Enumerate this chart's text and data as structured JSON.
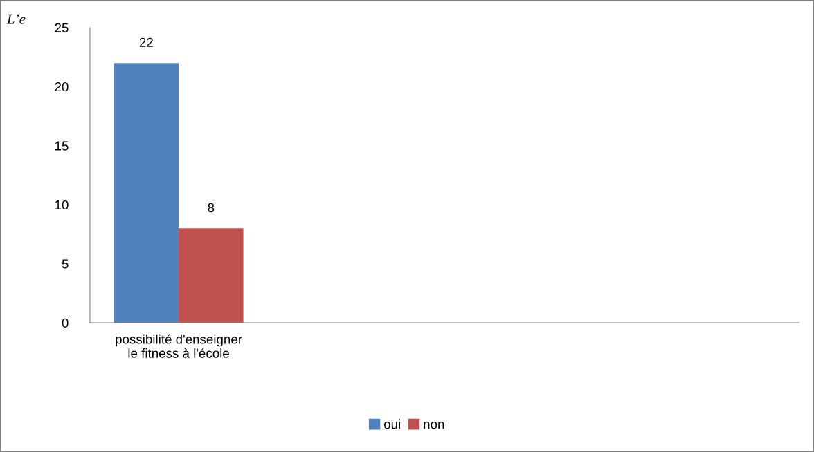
{
  "chart_data": {
    "type": "bar",
    "categories": [
      "possibilité d'enseigner\nle fitness à l'école",
      null,
      null,
      null
    ],
    "series": [
      {
        "name": "oui",
        "color": "#4f81bd",
        "values": [
          22,
          null,
          null,
          null
        ]
      },
      {
        "name": "non",
        "color": "#c0504d",
        "values": [
          8,
          null,
          null,
          null
        ]
      }
    ],
    "ylim": [
      0,
      25
    ],
    "yticks": [
      0,
      5,
      10,
      15,
      20,
      25
    ],
    "data_labels": true,
    "legend": "bottom",
    "grid": false,
    "annotations": [
      "L’e"
    ]
  }
}
